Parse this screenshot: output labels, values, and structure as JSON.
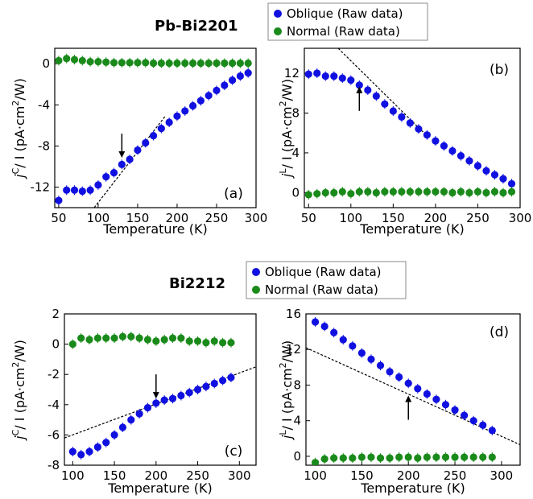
{
  "section_titles": [
    "Pb-Bi2201",
    "Bi2212"
  ],
  "legend_entries": [
    "Oblique (Raw data)",
    "Normal (Raw data)"
  ],
  "colors": {
    "oblique": "#1010e0",
    "normal": "#1a8a1a",
    "fit_line": "#000000"
  },
  "chart_data": [
    {
      "type": "scatter",
      "panel_label": "(a)",
      "xlabel": "Temperature (K)",
      "ylabel_main": "j",
      "ylabel_sup": "C",
      "ylabel_rest": "/ I  (pA·cm",
      "ylabel_unit_sup": "2",
      "ylabel_end": "/W)",
      "xlim": [
        45,
        300
      ],
      "ylim": [
        -14,
        1.5
      ],
      "xticks": [
        50,
        100,
        150,
        200,
        250,
        300
      ],
      "yticks": [
        -12,
        -8,
        -4,
        0
      ],
      "series": [
        {
          "name": "Oblique (Raw data)",
          "x": [
            50,
            60,
            70,
            80,
            90,
            100,
            110,
            120,
            130,
            140,
            150,
            160,
            170,
            180,
            190,
            200,
            210,
            220,
            230,
            240,
            250,
            260,
            270,
            280,
            290
          ],
          "y": [
            -13.3,
            -12.3,
            -12.3,
            -12.4,
            -12.3,
            -11.8,
            -11.0,
            -10.6,
            -9.8,
            -9.3,
            -8.4,
            -7.7,
            -7.0,
            -6.3,
            -5.7,
            -5.1,
            -4.6,
            -4.1,
            -3.6,
            -3.1,
            -2.6,
            -2.1,
            -1.6,
            -1.2,
            -0.9
          ]
        },
        {
          "name": "Normal (Raw data)",
          "x": [
            50,
            60,
            70,
            80,
            90,
            100,
            110,
            120,
            130,
            140,
            150,
            160,
            170,
            180,
            190,
            200,
            210,
            220,
            230,
            240,
            250,
            260,
            270,
            280,
            290
          ],
          "y": [
            0.3,
            0.5,
            0.4,
            0.3,
            0.2,
            0.2,
            0.15,
            0.1,
            0.1,
            0.1,
            0.1,
            0.1,
            0.05,
            0.05,
            0.05,
            0.05,
            0.05,
            0.05,
            0.05,
            0.05,
            0.05,
            0.05,
            0.05,
            0.05,
            0.05
          ]
        }
      ],
      "fit_line": {
        "x": [
          95,
          185
        ],
        "y": [
          -14,
          -5.1
        ]
      },
      "arrow": {
        "x": 130,
        "tip_y": -9.3,
        "dir": "down"
      }
    },
    {
      "type": "scatter",
      "panel_label": "(b)",
      "xlabel": "Temperature (K)",
      "ylabel_main": "j",
      "ylabel_sup": "L",
      "ylabel_rest": "/ I  (pA·cm",
      "ylabel_unit_sup": "2",
      "ylabel_end": "/W)",
      "xlim": [
        45,
        300
      ],
      "ylim": [
        -1.5,
        14.5
      ],
      "xticks": [
        50,
        100,
        150,
        200,
        250,
        300
      ],
      "yticks": [
        0,
        4,
        8,
        12
      ],
      "series": [
        {
          "name": "Oblique (Raw data)",
          "x": [
            50,
            60,
            70,
            80,
            90,
            100,
            110,
            120,
            130,
            140,
            150,
            160,
            170,
            180,
            190,
            200,
            210,
            220,
            230,
            240,
            250,
            260,
            270,
            280,
            290
          ],
          "y": [
            11.9,
            12.0,
            11.7,
            11.7,
            11.5,
            11.3,
            10.8,
            10.3,
            9.7,
            8.9,
            8.2,
            7.6,
            7.0,
            6.4,
            5.8,
            5.2,
            4.7,
            4.2,
            3.7,
            3.2,
            2.7,
            2.2,
            1.8,
            1.4,
            0.9
          ]
        },
        {
          "name": "Normal (Raw data)",
          "x": [
            50,
            60,
            70,
            80,
            90,
            100,
            110,
            120,
            130,
            140,
            150,
            160,
            170,
            180,
            190,
            200,
            210,
            220,
            230,
            240,
            250,
            260,
            270,
            280,
            290
          ],
          "y": [
            -0.2,
            -0.1,
            0.0,
            0.0,
            0.1,
            -0.1,
            0.1,
            0.1,
            0.0,
            0.1,
            0.1,
            0.1,
            0.1,
            0.1,
            0.1,
            0.1,
            0.1,
            0.0,
            0.1,
            0.0,
            0.1,
            0.0,
            0.1,
            0.0,
            0.1
          ]
        }
      ],
      "fit_line": {
        "x": [
          85,
          190
        ],
        "y": [
          14.5,
          5.7
        ]
      },
      "arrow": {
        "x": 110,
        "tip_y": 10.8,
        "dir": "up"
      }
    },
    {
      "type": "scatter",
      "panel_label": "(c)",
      "xlabel": "Temperature (K)",
      "ylabel_main": "j",
      "ylabel_sup": "C",
      "ylabel_rest": "/ I  (pA·cm",
      "ylabel_unit_sup": "2",
      "ylabel_end": "/W)",
      "xlim": [
        90,
        320
      ],
      "ylim": [
        -8,
        2
      ],
      "xticks": [
        100,
        150,
        200,
        250,
        300
      ],
      "yticks": [
        -8,
        -6,
        -4,
        -2,
        0,
        2
      ],
      "series": [
        {
          "name": "Oblique (Raw data)",
          "x": [
            100,
            110,
            120,
            130,
            140,
            150,
            160,
            170,
            180,
            190,
            200,
            210,
            220,
            230,
            240,
            250,
            260,
            270,
            280,
            290
          ],
          "y": [
            -7.1,
            -7.3,
            -7.1,
            -6.8,
            -6.5,
            -6.0,
            -5.5,
            -5.0,
            -4.6,
            -4.2,
            -3.9,
            -3.7,
            -3.6,
            -3.4,
            -3.2,
            -3.0,
            -2.8,
            -2.6,
            -2.4,
            -2.2
          ]
        },
        {
          "name": "Normal (Raw data)",
          "x": [
            100,
            110,
            120,
            130,
            140,
            150,
            160,
            170,
            180,
            190,
            200,
            210,
            220,
            230,
            240,
            250,
            260,
            270,
            280,
            290
          ],
          "y": [
            0.0,
            0.4,
            0.3,
            0.4,
            0.4,
            0.4,
            0.5,
            0.5,
            0.4,
            0.3,
            0.2,
            0.3,
            0.4,
            0.4,
            0.2,
            0.2,
            0.1,
            0.2,
            0.1,
            0.1
          ]
        }
      ],
      "fit_line": {
        "x": [
          90,
          320
        ],
        "y": [
          -6.2,
          -1.5
        ]
      },
      "arrow": {
        "x": 200,
        "tip_y": -3.7,
        "dir": "down"
      }
    },
    {
      "type": "scatter",
      "panel_label": "(d)",
      "xlabel": "Temperature (K)",
      "ylabel_main": "j",
      "ylabel_sup": "L",
      "ylabel_rest": "/ I  (pA·cm",
      "ylabel_unit_sup": "2",
      "ylabel_end": "/W)",
      "xlim": [
        90,
        320
      ],
      "ylim": [
        -1,
        16
      ],
      "xticks": [
        100,
        150,
        200,
        250,
        300
      ],
      "yticks": [
        0,
        4,
        8,
        12,
        16
      ],
      "series": [
        {
          "name": "Oblique (Raw data)",
          "x": [
            100,
            110,
            120,
            130,
            140,
            150,
            160,
            170,
            180,
            190,
            200,
            210,
            220,
            230,
            240,
            250,
            260,
            270,
            280,
            290
          ],
          "y": [
            15.1,
            14.6,
            13.9,
            13.1,
            12.4,
            11.6,
            10.9,
            10.2,
            9.5,
            8.9,
            8.2,
            7.6,
            7.0,
            6.4,
            5.8,
            5.2,
            4.6,
            4.0,
            3.5,
            2.9
          ]
        },
        {
          "name": "Normal (Raw data)",
          "x": [
            100,
            110,
            120,
            130,
            140,
            150,
            160,
            170,
            180,
            190,
            200,
            210,
            220,
            230,
            240,
            250,
            260,
            270,
            280,
            290
          ],
          "y": [
            -0.7,
            -0.3,
            -0.2,
            -0.2,
            -0.2,
            -0.1,
            -0.1,
            -0.2,
            -0.2,
            -0.1,
            -0.1,
            -0.2,
            -0.1,
            -0.1,
            -0.1,
            -0.1,
            -0.1,
            -0.1,
            -0.1,
            -0.1
          ]
        }
      ],
      "fit_line": {
        "x": [
          90,
          320
        ],
        "y": [
          12.2,
          1.3
        ]
      },
      "arrow": {
        "x": 200,
        "tip_y": 7.0,
        "dir": "up"
      }
    }
  ]
}
